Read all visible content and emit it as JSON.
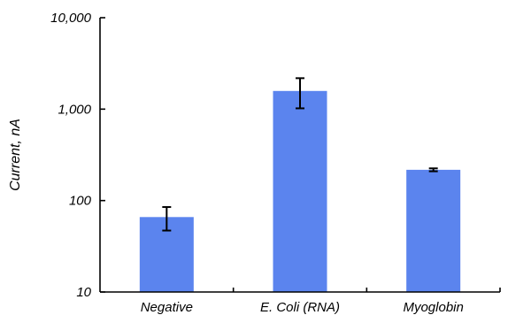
{
  "chart_data": {
    "type": "bar",
    "categories": [
      "Negative",
      "E. Coli (RNA)",
      "Myoglobin"
    ],
    "values": [
      66,
      1580,
      217
    ],
    "error_low": [
      47,
      1020,
      209
    ],
    "error_high": [
      85,
      2180,
      225
    ],
    "title": "",
    "xlabel": "",
    "ylabel": "Current, nA",
    "y_scale": "log",
    "ylim": [
      10,
      10000
    ],
    "y_ticks": [
      10,
      100,
      1000,
      10000
    ],
    "y_tick_labels": [
      "10",
      "100",
      "1,000",
      "10,000"
    ],
    "grid": false,
    "bar_color": "#5b84ee"
  }
}
